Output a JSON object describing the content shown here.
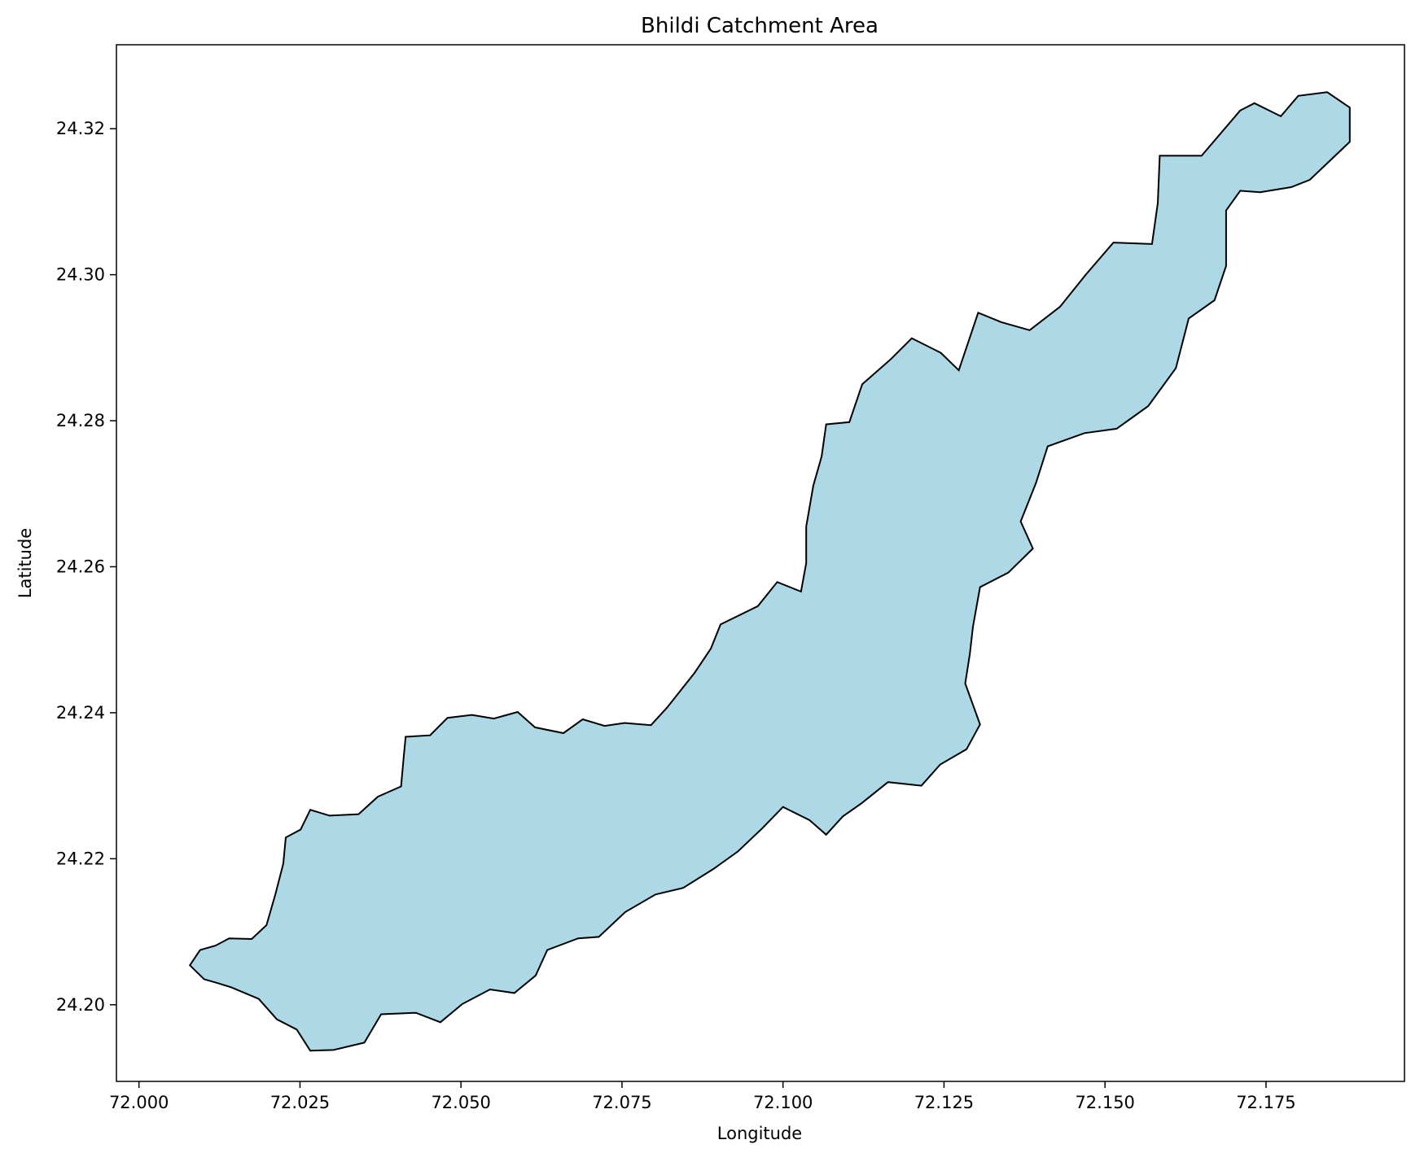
{
  "chart_data": {
    "type": "map",
    "title": "Bhildi Catchment Area",
    "xlabel": "Longitude",
    "ylabel": "Latitude",
    "xlim": [
      71.9965,
      72.1965
    ],
    "ylim": [
      24.1895,
      24.3315
    ],
    "xticks": [
      72.0,
      72.025,
      72.05,
      72.075,
      72.1,
      72.125,
      72.15,
      72.175
    ],
    "xtick_labels": [
      "72.000",
      "72.025",
      "72.050",
      "72.075",
      "72.100",
      "72.125",
      "72.150",
      "72.175"
    ],
    "yticks": [
      24.2,
      24.22,
      24.24,
      24.26,
      24.28,
      24.3,
      24.32
    ],
    "ytick_labels": [
      "24.20",
      "24.22",
      "24.24",
      "24.26",
      "24.28",
      "24.30",
      "24.32"
    ],
    "grid": false,
    "region": {
      "name": "Bhildi",
      "fill": "#add8e6",
      "edge": "#000000",
      "boundary": [
        [
          72.0079,
          24.2054
        ],
        [
          72.0095,
          24.2075
        ],
        [
          72.0119,
          24.2081
        ],
        [
          72.014,
          24.2091
        ],
        [
          72.0175,
          24.209
        ],
        [
          72.0198,
          24.2109
        ],
        [
          72.0212,
          24.2152
        ],
        [
          72.0224,
          24.2193
        ],
        [
          72.0228,
          24.2229
        ],
        [
          72.0251,
          24.224
        ],
        [
          72.0266,
          24.2267
        ],
        [
          72.0296,
          24.2259
        ],
        [
          72.0341,
          24.2261
        ],
        [
          72.0371,
          24.2285
        ],
        [
          72.0407,
          24.2299
        ],
        [
          72.0411,
          24.2339
        ],
        [
          72.0414,
          24.2367
        ],
        [
          72.0452,
          24.2369
        ],
        [
          72.0479,
          24.2393
        ],
        [
          72.0517,
          24.2397
        ],
        [
          72.0551,
          24.2392
        ],
        [
          72.0588,
          24.2401
        ],
        [
          72.0615,
          24.238
        ],
        [
          72.0659,
          24.2372
        ],
        [
          72.0689,
          24.2391
        ],
        [
          72.0723,
          24.2382
        ],
        [
          72.0754,
          24.2386
        ],
        [
          72.0795,
          24.2383
        ],
        [
          72.082,
          24.2407
        ],
        [
          72.0863,
          24.2455
        ],
        [
          72.0888,
          24.2488
        ],
        [
          72.0903,
          24.2521
        ],
        [
          72.0961,
          24.2546
        ],
        [
          72.0991,
          24.2579
        ],
        [
          72.1028,
          24.2566
        ],
        [
          72.1036,
          24.2605
        ],
        [
          72.1036,
          24.2655
        ],
        [
          72.1047,
          24.2711
        ],
        [
          72.106,
          24.2751
        ],
        [
          72.1067,
          24.2795
        ],
        [
          72.1103,
          24.2798
        ],
        [
          72.1123,
          24.285
        ],
        [
          72.1167,
          24.2884
        ],
        [
          72.12,
          24.2913
        ],
        [
          72.1245,
          24.2893
        ],
        [
          72.1273,
          24.2869
        ],
        [
          72.1303,
          24.2948
        ],
        [
          72.1339,
          24.2935
        ],
        [
          72.1383,
          24.2924
        ],
        [
          72.143,
          24.2956
        ],
        [
          72.147,
          24.3
        ],
        [
          72.1513,
          24.3044
        ],
        [
          72.1573,
          24.3042
        ],
        [
          72.1582,
          24.3098
        ],
        [
          72.1585,
          24.3163
        ],
        [
          72.165,
          24.3163
        ],
        [
          72.171,
          24.3225
        ],
        [
          72.1732,
          24.3235
        ],
        [
          72.1773,
          24.3217
        ],
        [
          72.18,
          24.3245
        ],
        [
          72.1845,
          24.325
        ],
        [
          72.188,
          24.3229
        ],
        [
          72.188,
          24.3182
        ],
        [
          72.1818,
          24.313
        ],
        [
          72.1789,
          24.312
        ],
        [
          72.1741,
          24.3113
        ],
        [
          72.171,
          24.3115
        ],
        [
          72.1688,
          24.3088
        ],
        [
          72.1688,
          24.3012
        ],
        [
          72.167,
          24.2965
        ],
        [
          72.163,
          24.294
        ],
        [
          72.161,
          24.2872
        ],
        [
          72.1567,
          24.282
        ],
        [
          72.1518,
          24.2789
        ],
        [
          72.1468,
          24.2783
        ],
        [
          72.1411,
          24.2765
        ],
        [
          72.1393,
          24.2715
        ],
        [
          72.1369,
          24.2662
        ],
        [
          72.1388,
          24.2625
        ],
        [
          72.135,
          24.2592
        ],
        [
          72.1306,
          24.2572
        ],
        [
          72.1295,
          24.2518
        ],
        [
          72.129,
          24.248
        ],
        [
          72.1283,
          24.244
        ],
        [
          72.1306,
          24.2384
        ],
        [
          72.1285,
          24.235
        ],
        [
          72.1244,
          24.2329
        ],
        [
          72.1215,
          24.23
        ],
        [
          72.1163,
          24.2305
        ],
        [
          72.1122,
          24.2276
        ],
        [
          72.1093,
          24.2258
        ],
        [
          72.1067,
          24.2233
        ],
        [
          72.1041,
          24.2253
        ],
        [
          72.1,
          24.2271
        ],
        [
          72.0967,
          24.2241
        ],
        [
          72.093,
          24.221
        ],
        [
          72.0892,
          24.2186
        ],
        [
          72.0845,
          24.216
        ],
        [
          72.0802,
          24.2151
        ],
        [
          72.0755,
          24.2127
        ],
        [
          72.0714,
          24.2093
        ],
        [
          72.0682,
          24.2091
        ],
        [
          72.0634,
          24.2075
        ],
        [
          72.0616,
          24.204
        ],
        [
          72.0583,
          24.2016
        ],
        [
          72.0545,
          24.2021
        ],
        [
          72.0502,
          24.2001
        ],
        [
          72.0468,
          24.1976
        ],
        [
          72.043,
          24.1989
        ],
        [
          72.0376,
          24.1987
        ],
        [
          72.035,
          24.1948
        ],
        [
          72.0302,
          24.1938
        ],
        [
          72.0266,
          24.1937
        ],
        [
          72.0245,
          24.1966
        ],
        [
          72.0214,
          24.198
        ],
        [
          72.0186,
          24.2008
        ],
        [
          72.0143,
          24.2024
        ],
        [
          72.0121,
          24.203
        ],
        [
          72.0101,
          24.2035
        ],
        [
          72.0079,
          24.2054
        ]
      ]
    }
  }
}
